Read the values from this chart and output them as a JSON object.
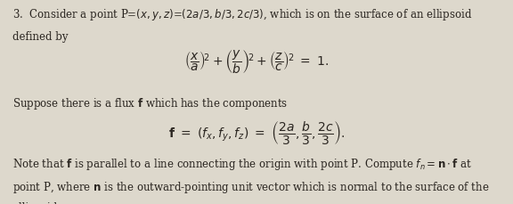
{
  "background_color": "#ddd8cc",
  "text_color": "#2a2520",
  "figsize": [
    5.76,
    2.29
  ],
  "dpi": 100,
  "fs": 8.5,
  "fs_eq": 10.0
}
